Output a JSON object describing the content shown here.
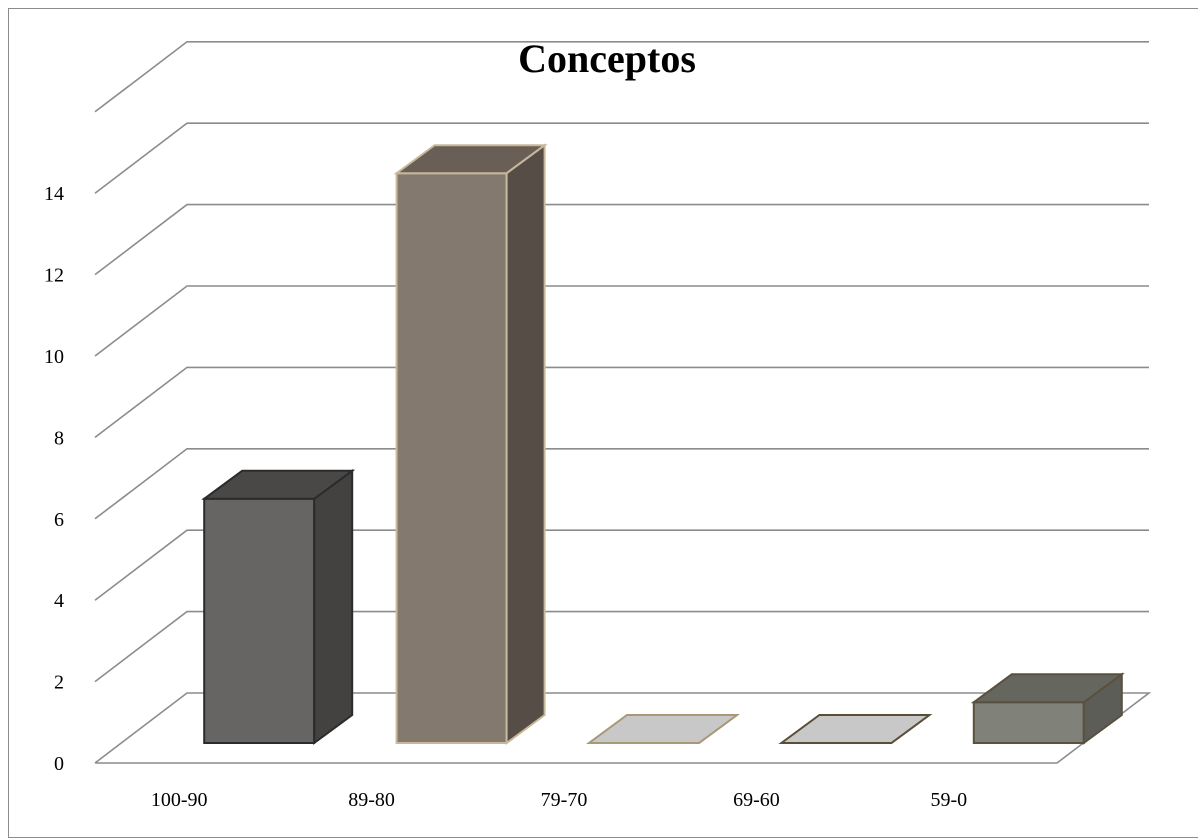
{
  "chart_data": {
    "type": "bar",
    "title": "Conceptos",
    "categories": [
      "100-90",
      "89-80",
      "79-70",
      "69-60",
      "59-0"
    ],
    "values": [
      6,
      14,
      0,
      0,
      1
    ],
    "ylim": [
      0,
      14
    ],
    "yticks": [
      "0",
      "2",
      "4",
      "6",
      "8",
      "10",
      "12",
      "14"
    ],
    "grid": true,
    "style": "3d-column",
    "colors": {
      "front": [
        "#676464",
        "#84796f",
        "#c8c8c8",
        "#c8c8c8",
        "#808179"
      ],
      "top": [
        "#4a4747",
        "#6a5f57",
        "#c8c8c8",
        "#c8c8c8",
        "#65665d"
      ],
      "side": [
        "#444141",
        "#554d46",
        "#c8c8c8",
        "#c8c8c8",
        "#5b5d56"
      ],
      "edge": [
        "#2b2b2b",
        "#c8b89a",
        "#a89878",
        "#5a4e38",
        "#5a5040"
      ],
      "grid": "#8c8c8c"
    }
  }
}
